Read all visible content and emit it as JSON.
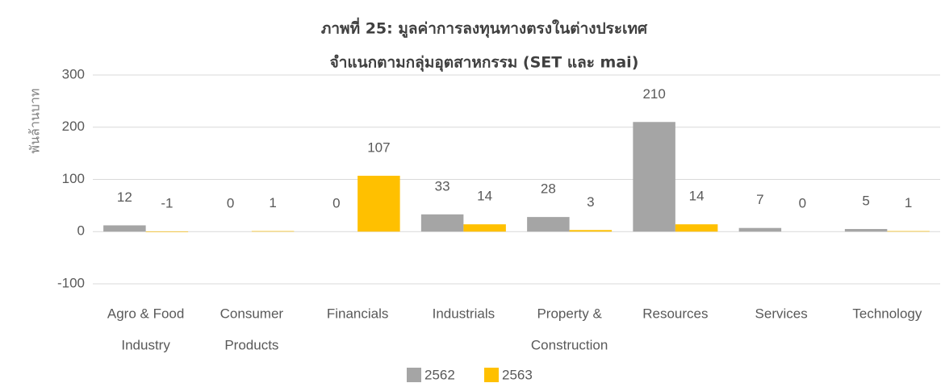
{
  "chart_data": {
    "type": "bar",
    "title": "ภาพที่ 25: มูลค่าการลงทุนทางตรงในต่างประเทศ",
    "subtitle": "จำแนกตามกลุ่มอุตสาหกรรม (SET และ mai)",
    "y_label": "พันล้านบาท",
    "categories": [
      [
        "Agro & Food",
        "Industry"
      ],
      [
        "Consumer",
        "Products"
      ],
      [
        "Financials"
      ],
      [
        "Industrials"
      ],
      [
        "Property &",
        "Construction"
      ],
      [
        "Resources"
      ],
      [
        "Services"
      ],
      [
        "Technology"
      ]
    ],
    "series": [
      {
        "name": "2562",
        "color": "#a5a5a5",
        "values": [
          12,
          0,
          0,
          33,
          28,
          210,
          7,
          5
        ]
      },
      {
        "name": "2563",
        "color": "#ffc000",
        "values": [
          -1,
          1,
          107,
          14,
          3,
          14,
          0,
          1
        ]
      }
    ],
    "ylim": [
      -100,
      300
    ],
    "yticks": [
      -100,
      0,
      100,
      200,
      300
    ],
    "grid": true,
    "legend": "bottom"
  }
}
